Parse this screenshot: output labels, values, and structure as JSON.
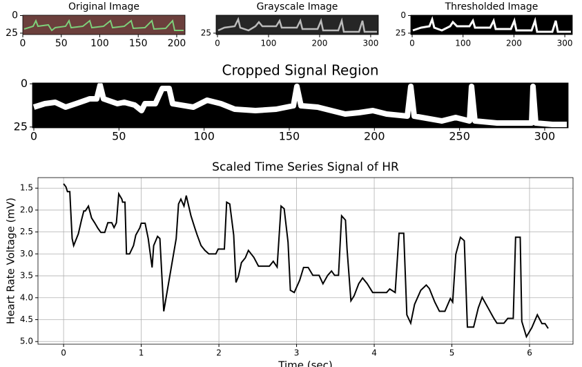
{
  "chart_data": [
    {
      "type": "image",
      "title": "Original Image",
      "xlim": [
        0,
        210.8
      ],
      "ylim": [
        27,
        -0.5
      ],
      "xticks": [
        0,
        50,
        100,
        150,
        200
      ],
      "yticks": [
        0,
        25
      ],
      "color": "#6b3a3a"
    },
    {
      "type": "image",
      "title": "Grayscale Image",
      "xlim": [
        -2.7,
        315
      ],
      "ylim": [
        27,
        -0.5
      ],
      "xticks": [
        0,
        100,
        200,
        300
      ],
      "yticks": [
        25
      ],
      "color": "#2a2a2a"
    },
    {
      "type": "image",
      "title": "Thresholded Image",
      "xlim": [
        -2.7,
        314.8
      ],
      "ylim": [
        27,
        -0.5
      ],
      "xticks": [
        0,
        100,
        200,
        300
      ],
      "yticks": [
        0,
        25
      ],
      "color": "#000000"
    },
    {
      "type": "image",
      "title": "Cropped Signal Region",
      "xlim": [
        -0.8,
        313.8
      ],
      "ylim": [
        25.5,
        -0.5
      ],
      "xticks": [
        0,
        50,
        100,
        150,
        200,
        250,
        300
      ],
      "yticks": [
        0,
        25
      ],
      "color": "#000000"
    },
    {
      "type": "line",
      "title": "Scaled Time Series Signal of HR",
      "x_label": "Time (sec)",
      "y_label": "Heart Rate Voltage (mV)",
      "xlim": [
        -0.33,
        6.56
      ],
      "ylim": [
        5.06,
        1.26
      ],
      "xticks": [
        0,
        1,
        2,
        3,
        4,
        5,
        6
      ],
      "yticks": [
        1.5,
        {
          "value": 2,
          "label": "2.0"
        },
        2.5,
        {
          "value": 3,
          "label": "3.0"
        },
        3.5,
        {
          "value": 4,
          "label": "4.0"
        },
        4.5,
        {
          "value": 5,
          "label": "5.0"
        }
      ],
      "grid": true,
      "color": "#000000",
      "x": [
        0,
        0.03,
        0.05,
        0.08,
        0.11,
        0.13,
        0.19,
        0.23,
        0.26,
        0.28,
        0.32,
        0.36,
        0.4,
        0.44,
        0.48,
        0.53,
        0.57,
        0.62,
        0.65,
        0.68,
        0.71,
        0.75,
        0.76,
        0.79,
        0.81,
        0.85,
        0.9,
        0.93,
        0.98,
        1.0,
        1.05,
        1.09,
        1.14,
        1.16,
        1.21,
        1.24,
        1.29,
        1.45,
        1.48,
        1.51,
        1.55,
        1.58,
        1.64,
        1.69,
        1.72,
        1.77,
        1.82,
        1.87,
        1.96,
        1.99,
        2.07,
        2.1,
        2.14,
        2.19,
        2.22,
        2.25,
        2.29,
        2.34,
        2.38,
        2.45,
        2.51,
        2.65,
        2.7,
        2.75,
        2.8,
        2.84,
        2.89,
        2.92,
        2.97,
        3.04,
        3.09,
        3.15,
        3.21,
        3.29,
        3.34,
        3.4,
        3.45,
        3.49,
        3.54,
        3.58,
        3.63,
        3.65,
        3.7,
        3.74,
        3.8,
        3.85,
        3.91,
        3.98,
        4.16,
        4.2,
        4.27,
        4.32,
        4.38,
        4.42,
        4.47,
        4.52,
        4.6,
        4.67,
        4.71,
        4.78,
        4.84,
        4.91,
        4.98,
        5.01,
        5.05,
        5.11,
        5.16,
        5.2,
        5.28,
        5.34,
        5.39,
        5.45,
        5.54,
        5.58,
        5.67,
        5.72,
        5.79,
        5.82,
        5.88,
        5.9,
        5.96,
        6.03,
        6.1,
        6.16,
        6.2,
        6.24
      ],
      "values": [
        1.4,
        1.47,
        1.58,
        1.58,
        2.65,
        2.81,
        2.54,
        2.23,
        2.02,
        2.02,
        1.91,
        2.18,
        2.29,
        2.41,
        2.51,
        2.51,
        2.29,
        2.29,
        2.4,
        2.29,
        1.63,
        1.75,
        1.82,
        1.82,
        3.0,
        3.0,
        2.81,
        2.57,
        2.41,
        2.3,
        2.3,
        2.65,
        3.31,
        2.81,
        2.6,
        2.65,
        4.31,
        2.65,
        1.86,
        1.75,
        1.91,
        1.67,
        2.13,
        2.41,
        2.57,
        2.81,
        2.92,
        3.0,
        3.0,
        2.89,
        2.89,
        1.82,
        1.86,
        2.57,
        3.65,
        3.52,
        3.2,
        3.09,
        2.92,
        3.08,
        3.28,
        3.28,
        3.17,
        3.3,
        1.91,
        1.97,
        2.73,
        3.83,
        3.88,
        3.6,
        3.31,
        3.31,
        3.49,
        3.49,
        3.68,
        3.49,
        3.39,
        3.49,
        3.49,
        2.13,
        2.23,
        2.89,
        4.07,
        3.96,
        3.68,
        3.55,
        3.68,
        3.88,
        3.88,
        3.8,
        3.88,
        2.53,
        2.53,
        4.39,
        4.58,
        4.15,
        3.83,
        3.71,
        3.79,
        4.1,
        4.31,
        4.31,
        4.02,
        4.1,
        3.01,
        2.62,
        2.7,
        4.67,
        4.67,
        4.23,
        3.99,
        4.18,
        4.47,
        4.58,
        4.58,
        4.47,
        4.47,
        2.62,
        2.62,
        4.54,
        4.89,
        4.68,
        4.39,
        4.59,
        4.59,
        4.7
      ]
    }
  ]
}
